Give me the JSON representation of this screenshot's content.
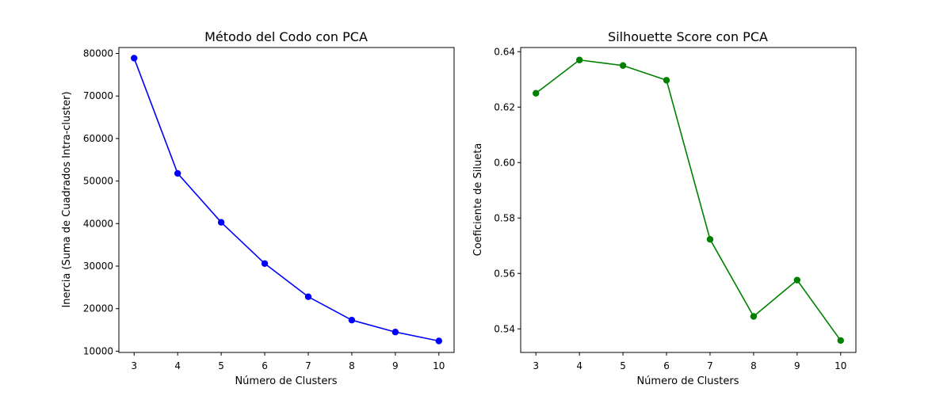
{
  "chart_data": [
    {
      "type": "line",
      "title": "Método del Codo con PCA",
      "xlabel": "Número de Clusters",
      "ylabel": "Inercia (Suma de Cuadrados Intra-cluster)",
      "x": [
        3,
        4,
        5,
        6,
        7,
        8,
        9,
        10
      ],
      "xlim": [
        2.65,
        10.35
      ],
      "ylim": [
        9700,
        81400
      ],
      "xticks": [
        3,
        4,
        5,
        6,
        7,
        8,
        9,
        10
      ],
      "yticks": [
        10000,
        20000,
        30000,
        40000,
        50000,
        60000,
        70000,
        80000
      ],
      "grid": false,
      "marker": "circle",
      "series": [
        {
          "color": "#0000ff",
          "values": [
            78900,
            51800,
            40300,
            30600,
            22800,
            17300,
            14500,
            12400
          ]
        }
      ]
    },
    {
      "type": "line",
      "title": "Silhouette Score con PCA",
      "xlabel": "Número de Clusters",
      "ylabel": "Coeficiente de Silueta",
      "x": [
        3,
        4,
        5,
        6,
        7,
        8,
        9,
        10
      ],
      "xlim": [
        2.65,
        10.35
      ],
      "ylim": [
        0.5315,
        0.6415
      ],
      "xticks": [
        3,
        4,
        5,
        6,
        7,
        8,
        9,
        10
      ],
      "yticks": [
        0.54,
        0.56,
        0.58,
        0.6,
        0.62,
        0.64
      ],
      "ytick_labels": [
        "0.54",
        "0.56",
        "0.58",
        "0.60",
        "0.62",
        "0.64"
      ],
      "grid": false,
      "marker": "circle",
      "series": [
        {
          "color": "#008000",
          "values": [
            0.625,
            0.637,
            0.635,
            0.6297,
            0.5723,
            0.5445,
            0.5576,
            0.5358
          ]
        }
      ]
    }
  ]
}
